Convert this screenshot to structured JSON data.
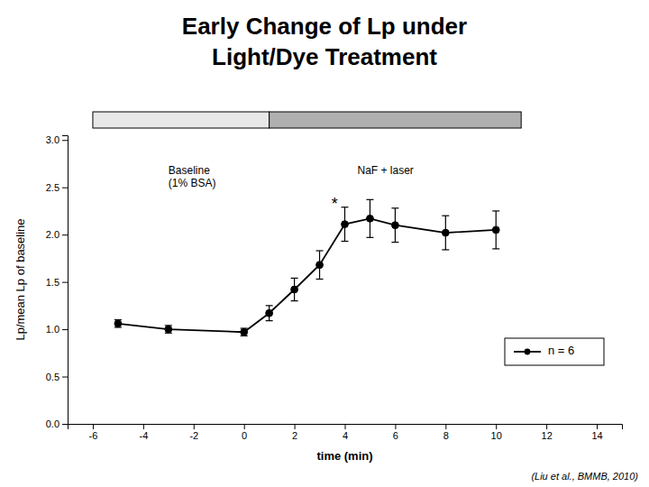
{
  "chart_data": {
    "type": "line",
    "title": "Early Change of Lp under\nLight/Dye Treatment",
    "x_label": "time (min)",
    "y_label": "Lp/mean Lp of baseline",
    "source": "(Liu et al., BMMB, 2010)",
    "x": [
      -5,
      -3,
      0,
      1,
      2,
      3,
      4,
      5,
      6,
      8,
      10
    ],
    "series": [
      {
        "name": "n = 6",
        "color": "#000000",
        "marker": "circle",
        "values": [
          1.06,
          1.0,
          0.97,
          1.17,
          1.42,
          1.68,
          2.11,
          2.17,
          2.1,
          2.02,
          2.05
        ],
        "errors": [
          0.04,
          0.04,
          0.04,
          0.08,
          0.12,
          0.15,
          0.18,
          0.2,
          0.18,
          0.18,
          0.2
        ]
      }
    ],
    "xlim": [
      -7,
      15
    ],
    "ylim": [
      0,
      3.05
    ],
    "xticks": [
      -6,
      -4,
      -2,
      0,
      2,
      4,
      6,
      8,
      10,
      12,
      14
    ],
    "yticks": [
      {
        "value": 0,
        "label": "0.0"
      },
      0.5,
      {
        "value": 1,
        "label": "1.0"
      },
      1.5,
      {
        "value": 2,
        "label": "2.0"
      },
      2.5,
      {
        "value": 3,
        "label": "3.0"
      }
    ],
    "periods": [
      {
        "start": -6.0,
        "end": 1.0,
        "color": "#e8e8e8"
      },
      {
        "start": 1.0,
        "end": 11.0,
        "color": "#b0b0b0"
      }
    ],
    "annotations": [
      {
        "text": "Baseline\n(1% BSA)",
        "x": -3.0,
        "y": 2.73
      },
      {
        "text": "NaF + laser",
        "x": 4.5,
        "y": 2.73
      },
      {
        "text": "*",
        "x": 3.6,
        "y": 2.27
      }
    ],
    "legend": "lower right",
    "grid": false
  }
}
